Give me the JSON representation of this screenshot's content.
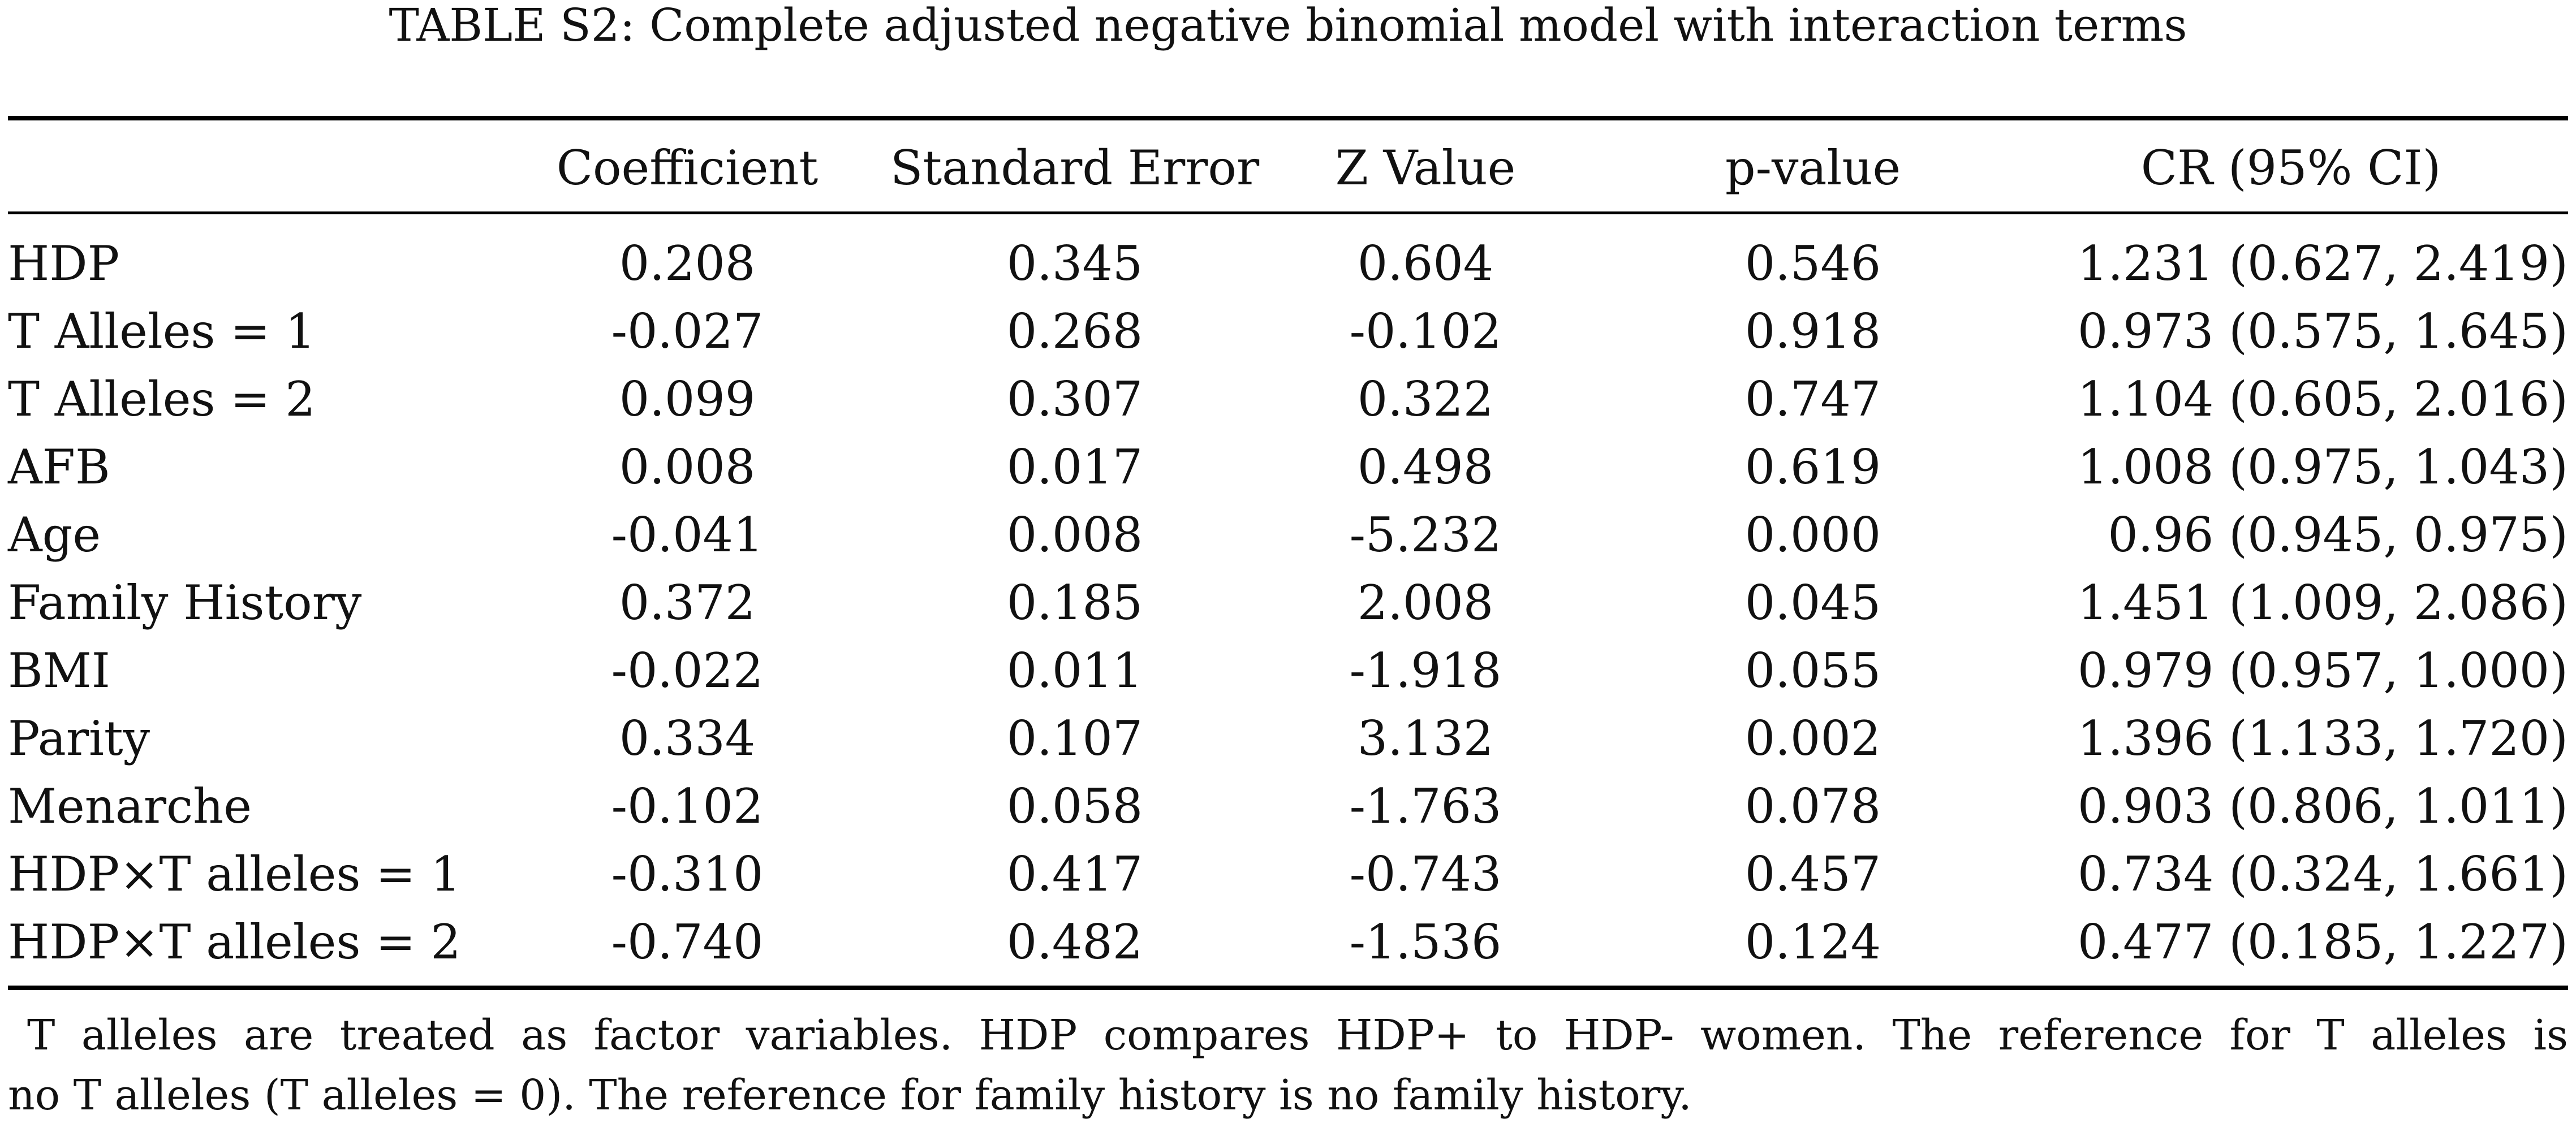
{
  "caption": "TABLE S2: Complete adjusted negative binomial model with interaction terms",
  "table": {
    "headers": {
      "label": "",
      "coefficient": "Coefficient",
      "standard_error": "Standard Error",
      "z_value": "Z Value",
      "p_value": "p-value",
      "cr": "CR (95% CI)"
    },
    "rows": [
      {
        "label": "HDP",
        "coefficient": "0.208",
        "standard_error": "0.345",
        "z_value": "0.604",
        "p_value": "0.546",
        "cr": "1.231 (0.627, 2.419)"
      },
      {
        "label": "T Alleles = 1",
        "coefficient": "-0.027",
        "standard_error": "0.268",
        "z_value": "-0.102",
        "p_value": "0.918",
        "cr": "0.973 (0.575, 1.645)"
      },
      {
        "label": "T Alleles = 2",
        "coefficient": "0.099",
        "standard_error": "0.307",
        "z_value": "0.322",
        "p_value": "0.747",
        "cr": "1.104 (0.605, 2.016)"
      },
      {
        "label": "AFB",
        "coefficient": "0.008",
        "standard_error": "0.017",
        "z_value": "0.498",
        "p_value": "0.619",
        "cr": "1.008 (0.975, 1.043)"
      },
      {
        "label": "Age",
        "coefficient": "-0.041",
        "standard_error": "0.008",
        "z_value": "-5.232",
        "p_value": "0.000",
        "cr": "0.96 (0.945, 0.975)"
      },
      {
        "label": "Family History",
        "coefficient": "0.372",
        "standard_error": "0.185",
        "z_value": "2.008",
        "p_value": "0.045",
        "cr": "1.451 (1.009, 2.086)"
      },
      {
        "label": "BMI",
        "coefficient": "-0.022",
        "standard_error": "0.011",
        "z_value": "-1.918",
        "p_value": "0.055",
        "cr": "0.979 (0.957, 1.000)"
      },
      {
        "label": "Parity",
        "coefficient": "0.334",
        "standard_error": "0.107",
        "z_value": "3.132",
        "p_value": "0.002",
        "cr": "1.396 (1.133, 1.720)"
      },
      {
        "label": "Menarche",
        "coefficient": "-0.102",
        "standard_error": "0.058",
        "z_value": "-1.763",
        "p_value": "0.078",
        "cr": "0.903 (0.806, 1.011)"
      },
      {
        "label": "HDP×T alleles = 1",
        "coefficient": "-0.310",
        "standard_error": "0.417",
        "z_value": "-0.743",
        "p_value": "0.457",
        "cr": "0.734 (0.324, 1.661)"
      },
      {
        "label": "HDP×T alleles = 2",
        "coefficient": "-0.740",
        "standard_error": "0.482",
        "z_value": "-1.536",
        "p_value": "0.124",
        "cr": "0.477 (0.185, 1.227)"
      }
    ]
  },
  "note": {
    "line1": "T alleles are treated as factor variables. HDP compares HDP+ to HDP- women. The reference for T alleles is",
    "line2": "no T alleles (T alleles = 0). The reference for family history is no family history."
  }
}
